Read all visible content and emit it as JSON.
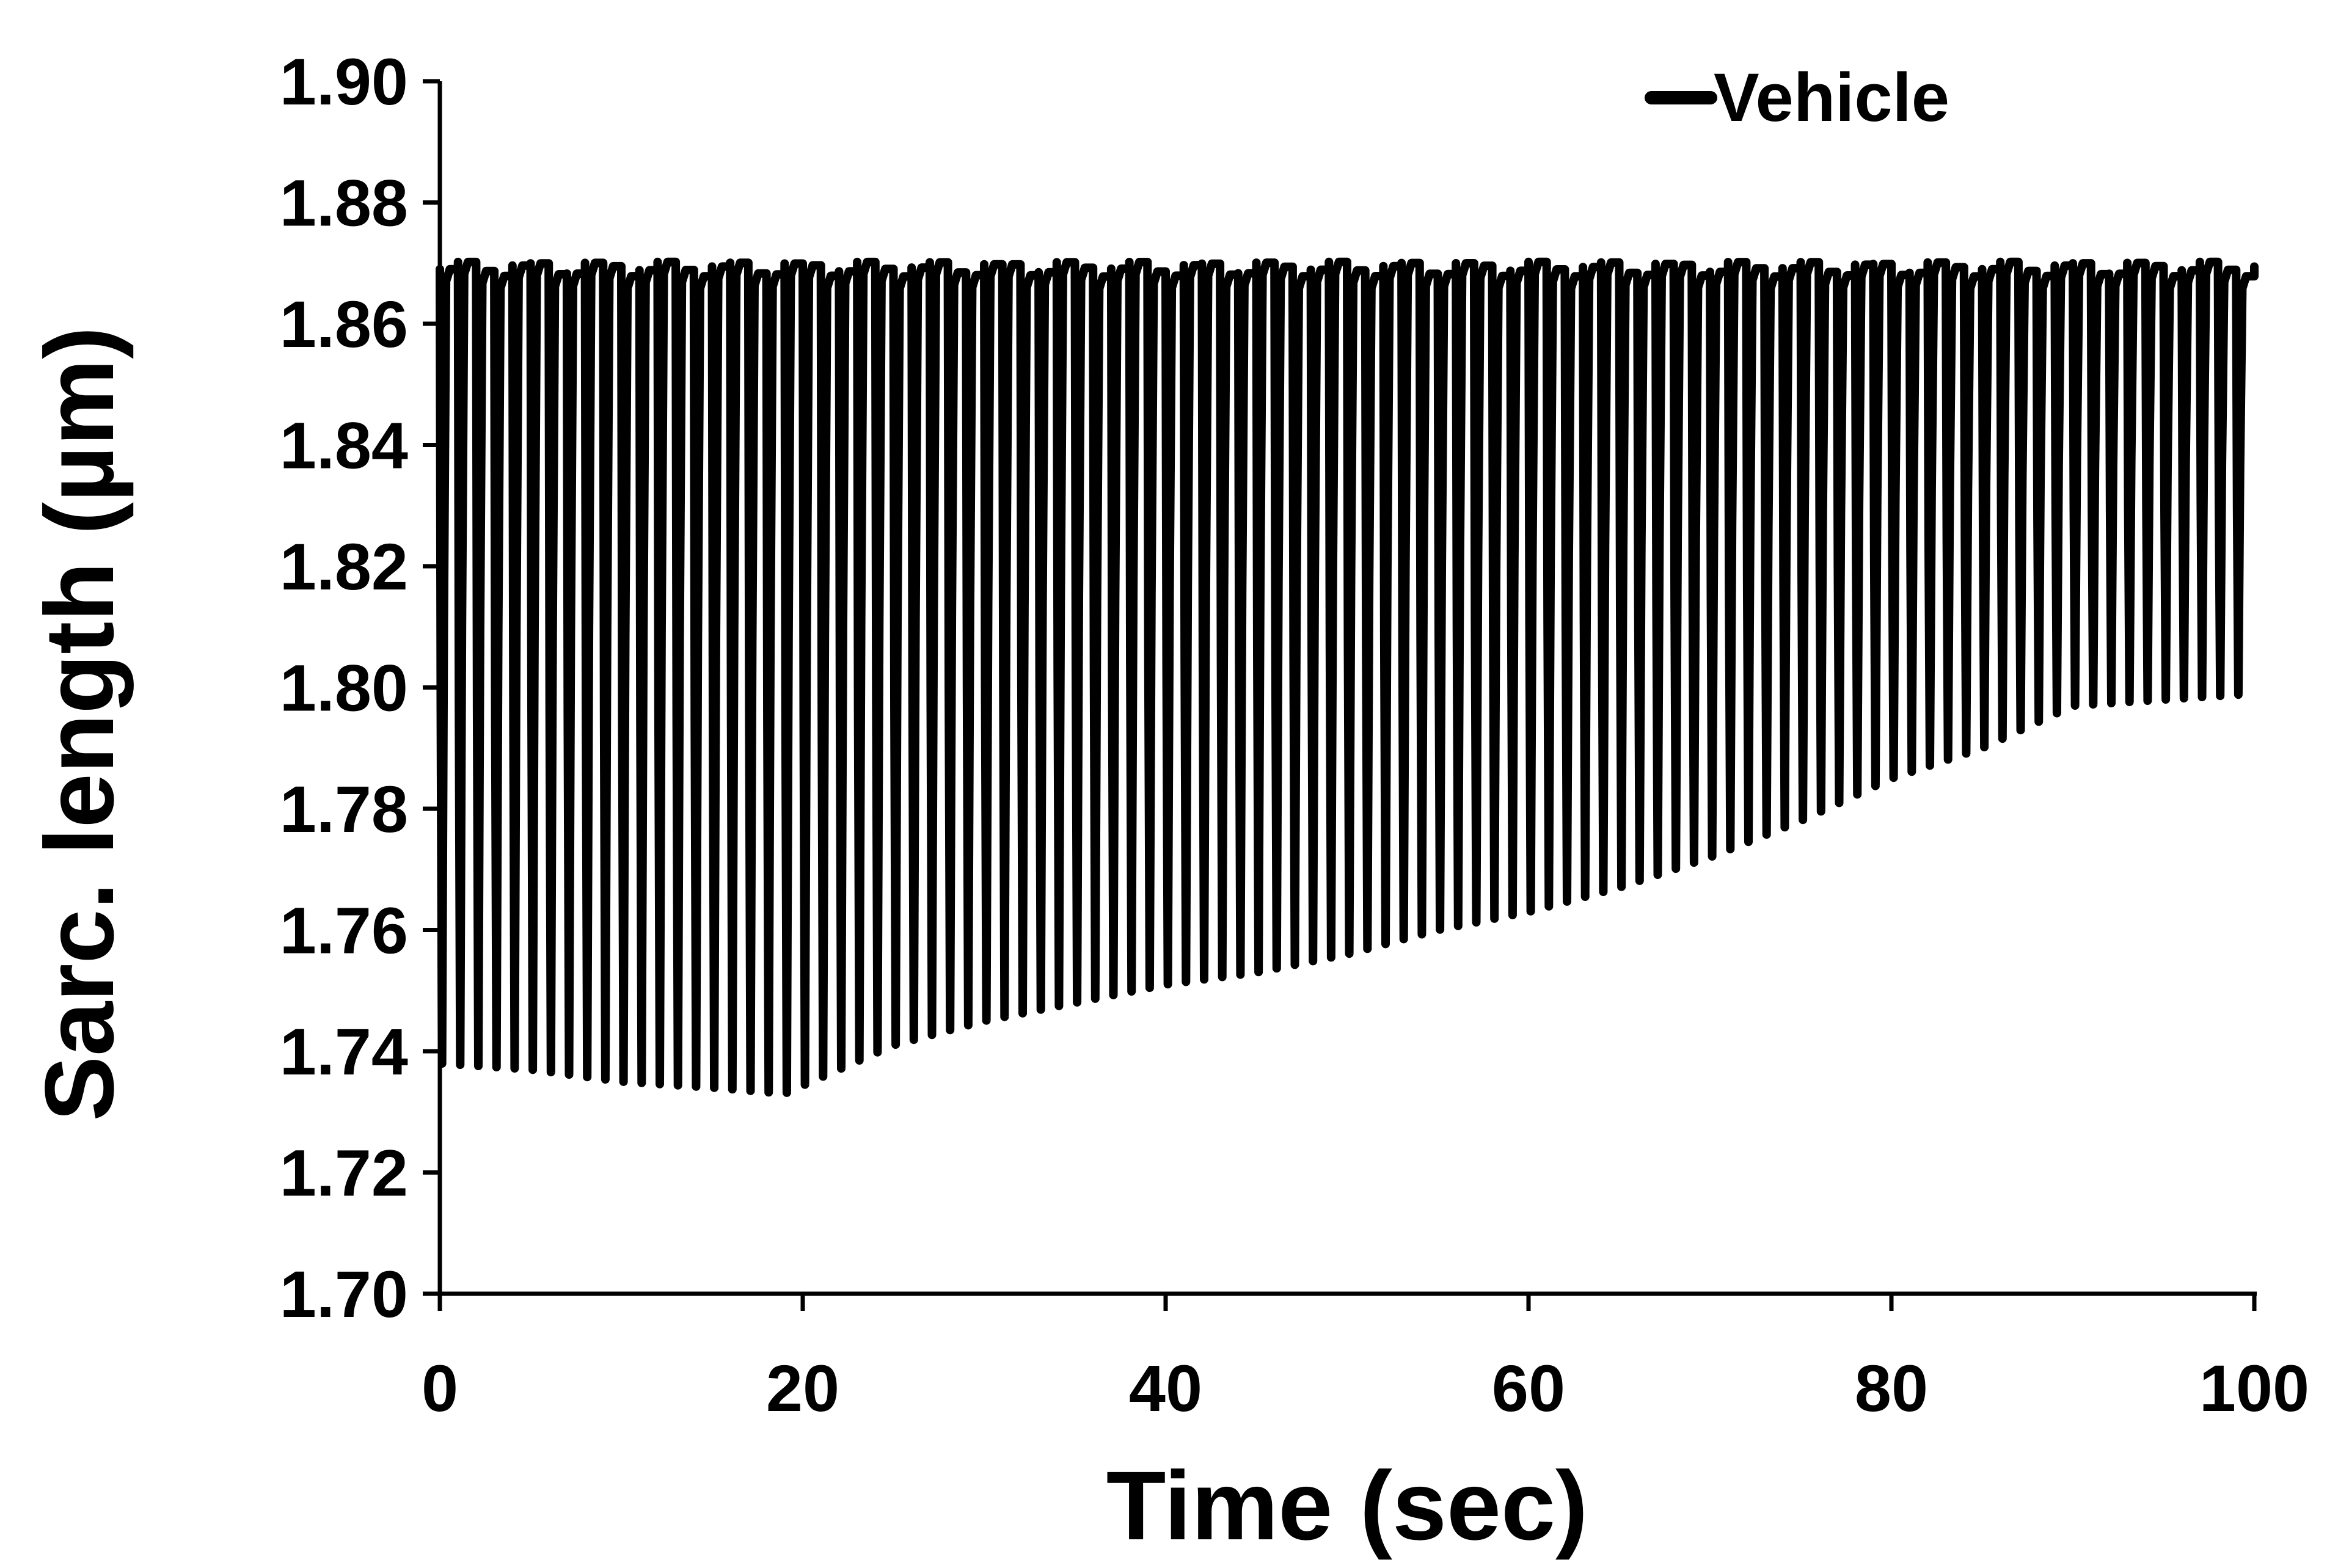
{
  "chart_data": {
    "type": "line",
    "title": "",
    "xlabel": "Time (sec)",
    "ylabel": "Sarc. length (µm)",
    "xlim": [
      0,
      100
    ],
    "ylim": [
      1.7,
      1.9
    ],
    "x_ticks": [
      "0",
      "20",
      "40",
      "60",
      "80",
      "100"
    ],
    "y_ticks": [
      "1.70",
      "1.72",
      "1.74",
      "1.76",
      "1.78",
      "1.80",
      "1.82",
      "1.84",
      "1.86",
      "1.88",
      "1.90"
    ],
    "grid": false,
    "legend": {
      "position": "top-right",
      "entries": [
        "Vehicle"
      ]
    },
    "series": [
      {
        "name": "Vehicle",
        "color": "#000000",
        "pacing_period_sec": 1.0,
        "baseline_length": 1.869,
        "minima": {
          "time": [
            0,
            5,
            10,
            15,
            19,
            25,
            30,
            35,
            40,
            45,
            50,
            55,
            60,
            65,
            70,
            75,
            80,
            85,
            90,
            95,
            100
          ],
          "value": [
            1.738,
            1.737,
            1.735,
            1.734,
            1.733,
            1.741,
            1.745,
            1.748,
            1.751,
            1.753,
            1.756,
            1.76,
            1.763,
            1.767,
            1.772,
            1.778,
            1.785,
            1.79,
            1.797,
            1.798,
            1.799
          ]
        }
      }
    ]
  }
}
